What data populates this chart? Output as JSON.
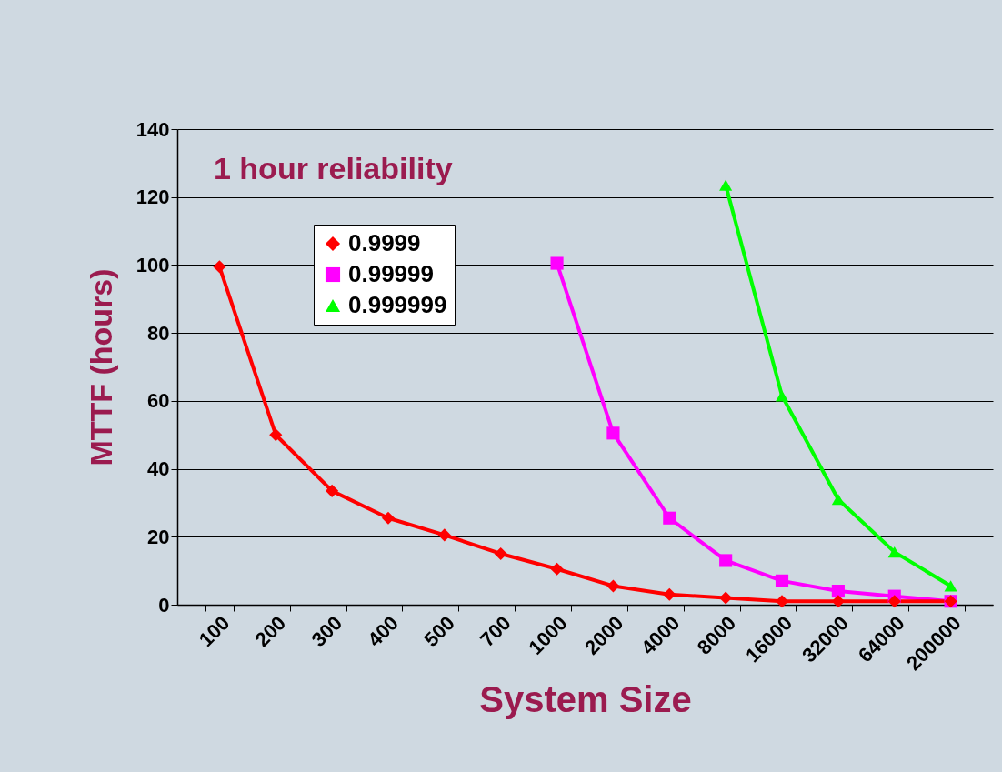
{
  "chart_data": {
    "type": "line",
    "xlabel": "System Size",
    "ylabel": "MTTF (hours)",
    "annotations": [
      "1 hour reliability"
    ],
    "categories": [
      "100",
      "200",
      "300",
      "400",
      "500",
      "700",
      "1000",
      "2000",
      "4000",
      "8000",
      "16000",
      "32000",
      "64000",
      "200000"
    ],
    "series": [
      {
        "name": "0.9999",
        "color": "#ff0000",
        "marker": "diamond",
        "values": [
          99.5,
          50,
          33.5,
          25.5,
          20.5,
          15,
          10.5,
          5.5,
          3,
          2,
          1,
          1,
          1,
          1
        ]
      },
      {
        "name": "0.99999",
        "color": "#ff00ff",
        "marker": "square",
        "values": [
          null,
          null,
          null,
          null,
          null,
          null,
          100.5,
          50.5,
          25.5,
          13,
          7,
          4,
          2.5,
          1
        ]
      },
      {
        "name": "0.999999",
        "color": "#00ff00",
        "marker": "triangle",
        "values": [
          null,
          null,
          null,
          null,
          null,
          null,
          null,
          null,
          null,
          123.5,
          61.5,
          31,
          15.5,
          5.5
        ]
      }
    ],
    "ylim": [
      0,
      140
    ],
    "yticks": [
      0,
      20,
      40,
      60,
      80,
      100,
      120,
      140
    ],
    "grid": "y",
    "legend": "top left"
  }
}
